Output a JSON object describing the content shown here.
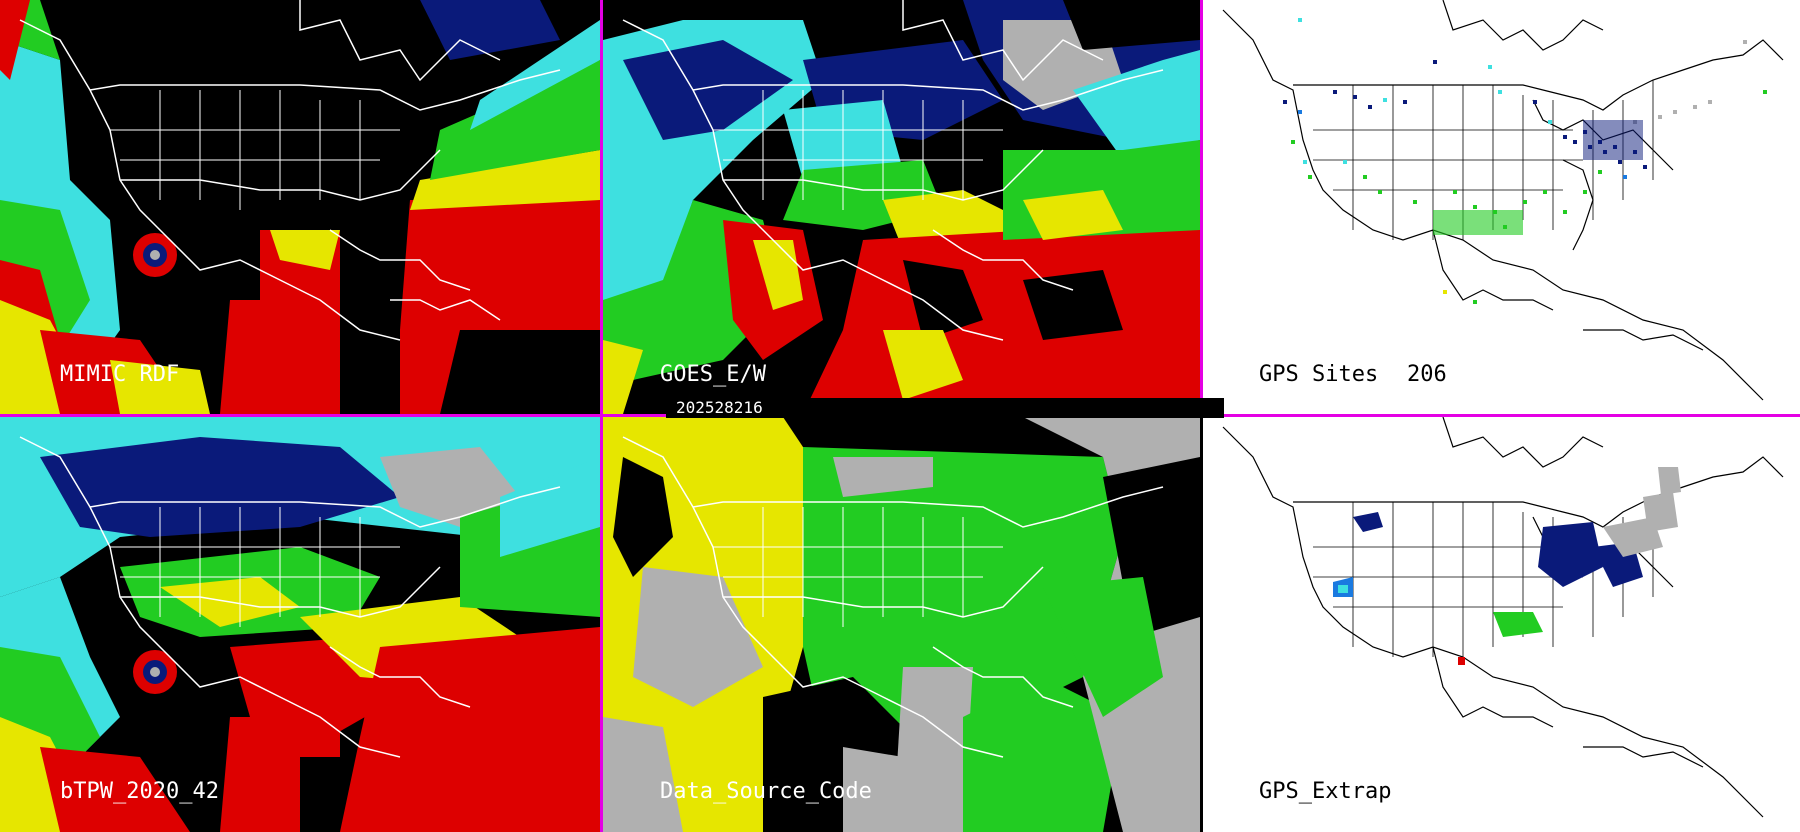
{
  "timestamp": "202528216",
  "colors": {
    "divider": "#e400e4",
    "map_lines_dark": "#ffffff",
    "map_lines_light": "#000000",
    "tpw_cyan": "#3ee0e0",
    "tpw_green": "#22cc22",
    "tpw_yellow": "#e6e600",
    "tpw_red": "#dd0000",
    "tpw_navy": "#0a1a7a",
    "tpw_gray": "#b0b0b0"
  },
  "panels": [
    {
      "id": "mimic",
      "label": "MIMIC RDF"
    },
    {
      "id": "goes",
      "label": "GOES_E/W"
    },
    {
      "id": "gps-sites",
      "label": "GPS Sites",
      "count": "206"
    },
    {
      "id": "btpw",
      "label": "bTPW_2020_42"
    },
    {
      "id": "data-source",
      "label": "Data_Source_Code"
    },
    {
      "id": "gps-extrap",
      "label": "GPS_Extrap"
    }
  ]
}
